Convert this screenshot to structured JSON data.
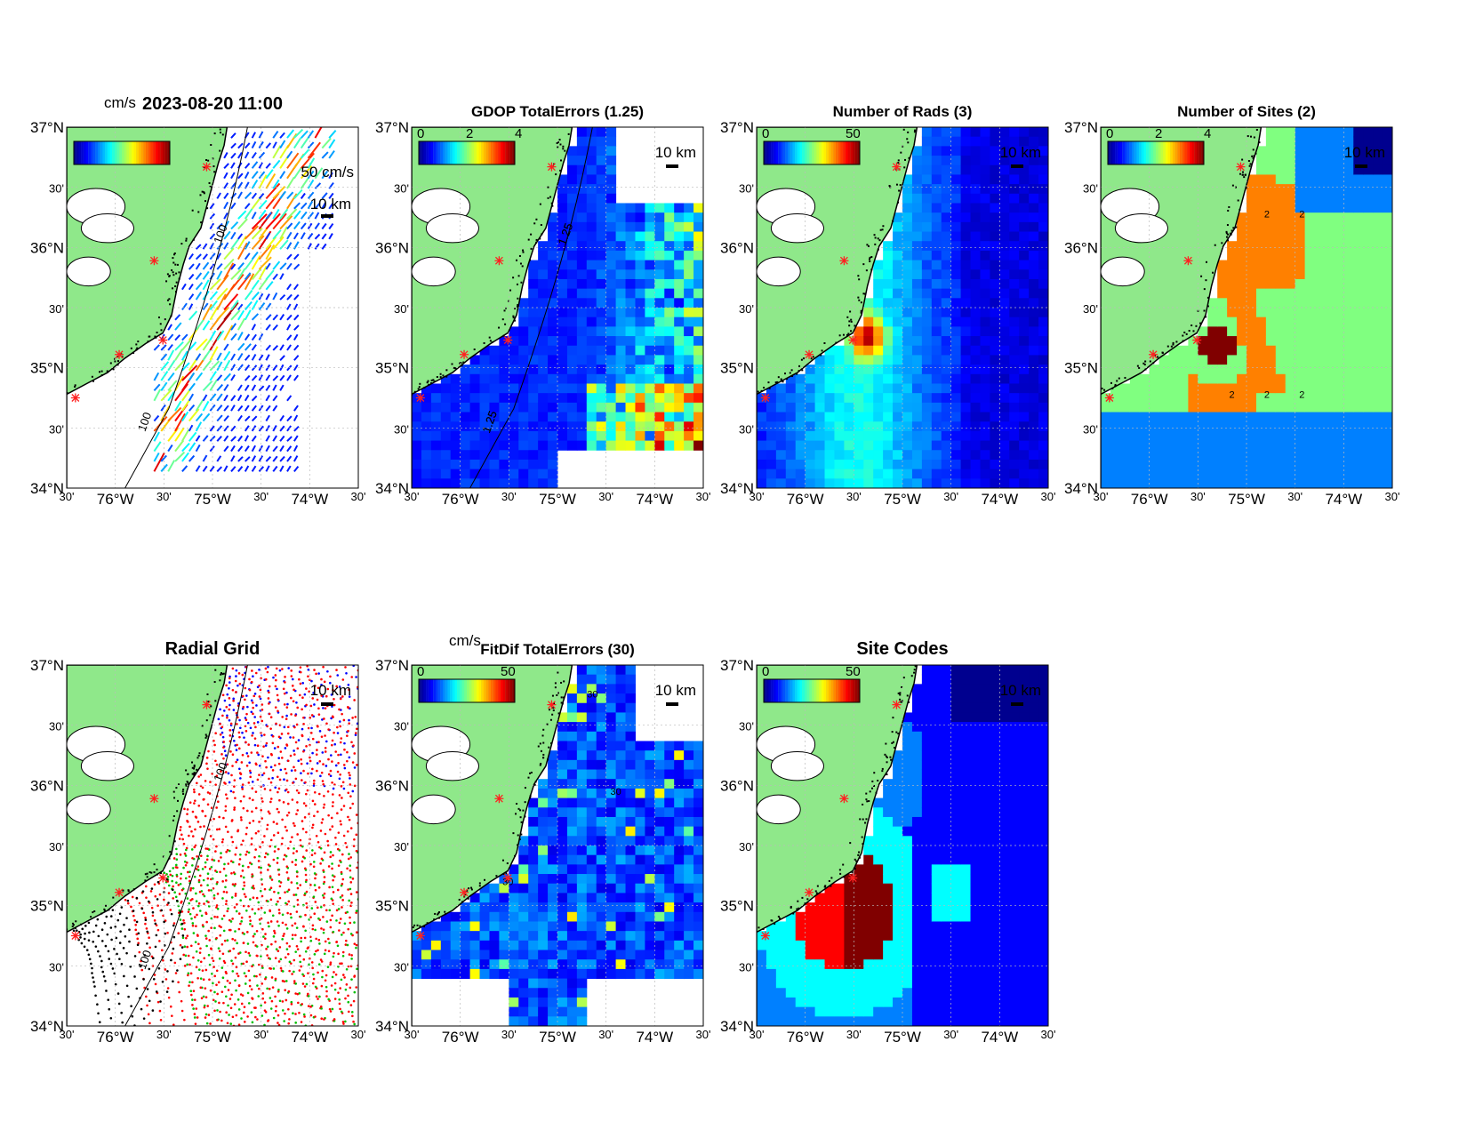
{
  "figure": {
    "colors": {
      "land": "#8fe88a",
      "frame": "#000000",
      "grid": "#bbbbbb",
      "site_marker": "#ff2020",
      "colormap": [
        "#00008f",
        "#0000ff",
        "#0080ff",
        "#00ffff",
        "#80ff80",
        "#ffff00",
        "#ff8000",
        "#ff0000",
        "#800000"
      ]
    },
    "axes": {
      "lat_labels": [
        "37°N",
        "30'",
        "36°N",
        "30'",
        "35°N",
        "30'",
        "34°N"
      ],
      "lon_labels": [
        "30'",
        "76°W",
        "30'",
        "75°W",
        "30'",
        "74°W",
        "30'"
      ],
      "scale_bar": "10 km",
      "bathymetry_contour": "100"
    },
    "panels": [
      {
        "id": "totals",
        "title": "2023-08-20 11:00",
        "colorbar_unit": "cm/s",
        "colorbar_ticks": [],
        "vector_scale_label": "50 cm/s",
        "contour_labels": [
          "100",
          "100"
        ]
      },
      {
        "id": "gdop",
        "title": "GDOP TotalErrors (1.25)",
        "colorbar_unit": "",
        "colorbar_ticks": [
          "0",
          "2",
          "4"
        ],
        "contour_labels": [
          "1.25",
          "1.25",
          "1.25",
          "1.25"
        ]
      },
      {
        "id": "nrads",
        "title": "Number of Rads (3)",
        "colorbar_unit": "",
        "colorbar_ticks": [
          "0",
          "50"
        ],
        "contour_labels": []
      },
      {
        "id": "nsites",
        "title": "Number of Sites (2)",
        "colorbar_unit": "",
        "colorbar_ticks": [
          "0",
          "2",
          "4"
        ],
        "contour_labels": [
          "2",
          "2",
          "2",
          "2",
          "2",
          "2"
        ]
      },
      {
        "id": "radgrid",
        "title": "Radial Grid",
        "colorbar_unit": "",
        "colorbar_ticks": [],
        "contour_labels": [
          "100",
          "100"
        ]
      },
      {
        "id": "fitdif",
        "title": "FitDif TotalErrors (30)",
        "colorbar_unit": "cm/s",
        "colorbar_ticks": [
          "0",
          "50"
        ],
        "contour_labels": [
          "30",
          "30",
          "30"
        ]
      },
      {
        "id": "sitecodes",
        "title": "Site Codes",
        "colorbar_unit": "",
        "colorbar_ticks": [
          "0",
          "50"
        ],
        "contour_labels": []
      }
    ]
  }
}
